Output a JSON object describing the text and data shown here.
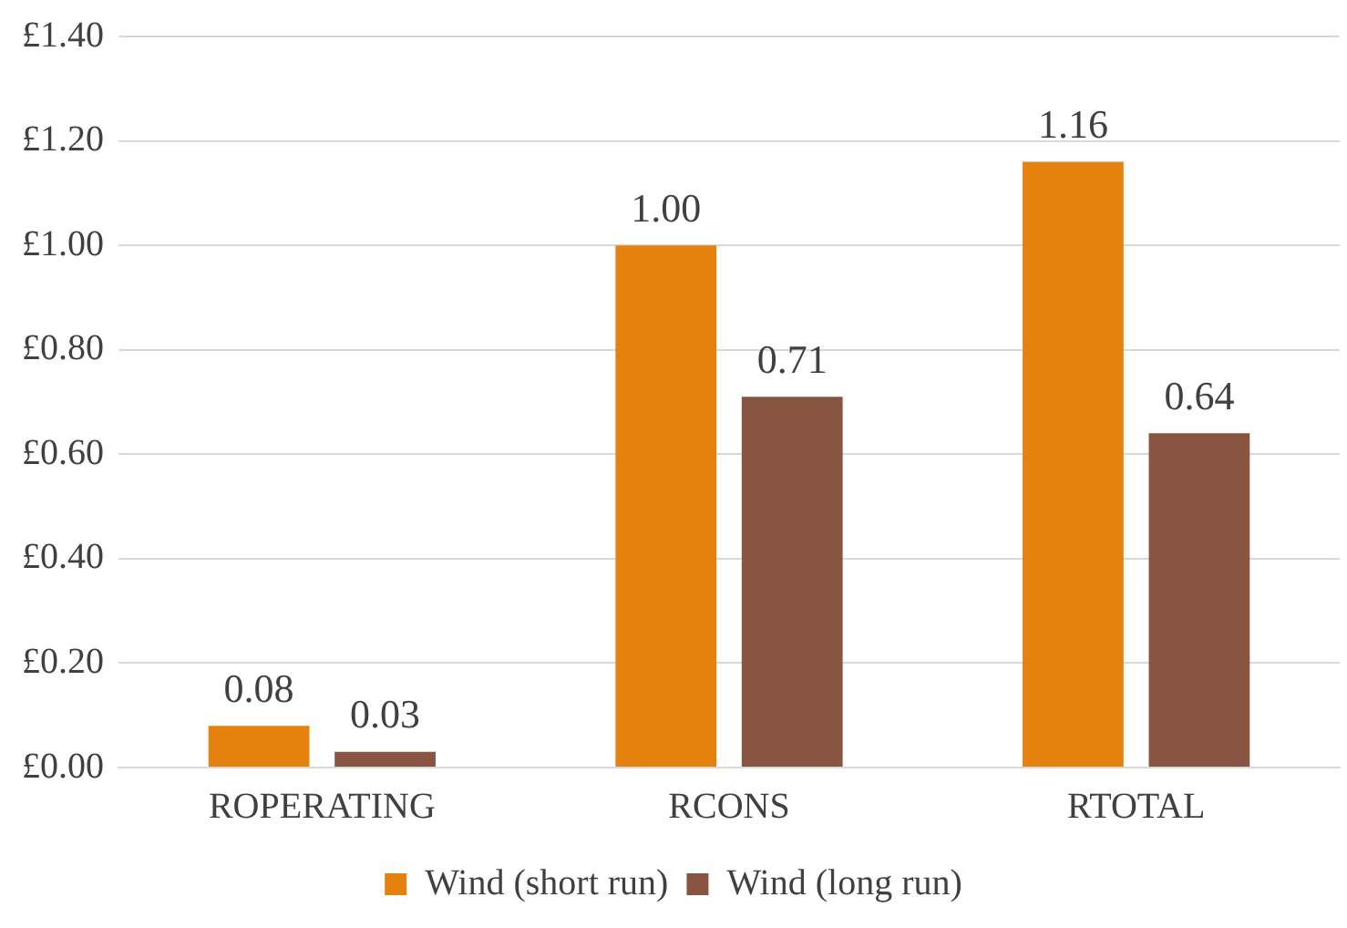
{
  "chart_data": {
    "type": "bar",
    "categories": [
      "ROPERATING",
      "RCONS",
      "RTOTAL"
    ],
    "series": [
      {
        "name": "Wind (short run)",
        "color": "#e5820f",
        "values": [
          0.08,
          1.0,
          1.16
        ],
        "value_labels": [
          "0.08",
          "1.00",
          "1.16"
        ]
      },
      {
        "name": "Wind (long run)",
        "color": "#875542",
        "values": [
          0.03,
          0.71,
          0.64
        ],
        "value_labels": [
          "0.03",
          "0.71",
          "0.64"
        ]
      }
    ],
    "ylim": [
      0,
      1.4
    ],
    "yticks": [
      {
        "value": 0,
        "label": "£0.00"
      },
      {
        "value": 0.2,
        "label": "£0.20"
      },
      {
        "value": 0.4,
        "label": "£0.40"
      },
      {
        "value": 0.6,
        "label": "£0.60"
      },
      {
        "value": 0.8,
        "label": "£0.80"
      },
      {
        "value": 1.0,
        "label": "£1.00"
      },
      {
        "value": 1.2,
        "label": "£1.20"
      },
      {
        "value": 1.4,
        "label": "£1.40"
      }
    ],
    "grid": "y",
    "legend": "bottom"
  }
}
